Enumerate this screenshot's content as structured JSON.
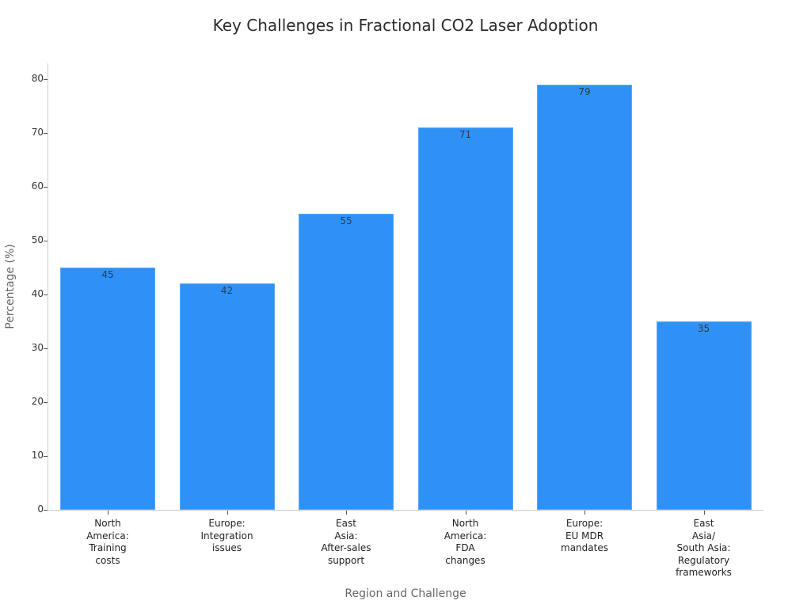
{
  "chart_data": {
    "type": "bar",
    "title": "Key Challenges in Fractional CO2 Laser Adoption",
    "xlabel": "Region and Challenge",
    "ylabel": "Percentage (%)",
    "categories": [
      "North\nAmerica:\nTraining\ncosts",
      "Europe:\nIntegration\nissues",
      "East\nAsia:\nAfter-sales\nsupport",
      "North\nAmerica:\nFDA\nchanges",
      "Europe:\nEU MDR\nmandates",
      "East\nAsia/\nSouth Asia:\nRegulatory\nframeworks"
    ],
    "values": [
      45,
      42,
      55,
      71,
      79,
      35
    ],
    "value_labels": [
      "45",
      "42",
      "55",
      "71",
      "79",
      "35"
    ],
    "ylim": [
      0,
      83
    ],
    "yticks": [
      "0",
      "10",
      "20",
      "30",
      "40",
      "50",
      "60",
      "70",
      "80"
    ],
    "grid": false,
    "legend": null,
    "bar_color": "#2f91f6"
  }
}
